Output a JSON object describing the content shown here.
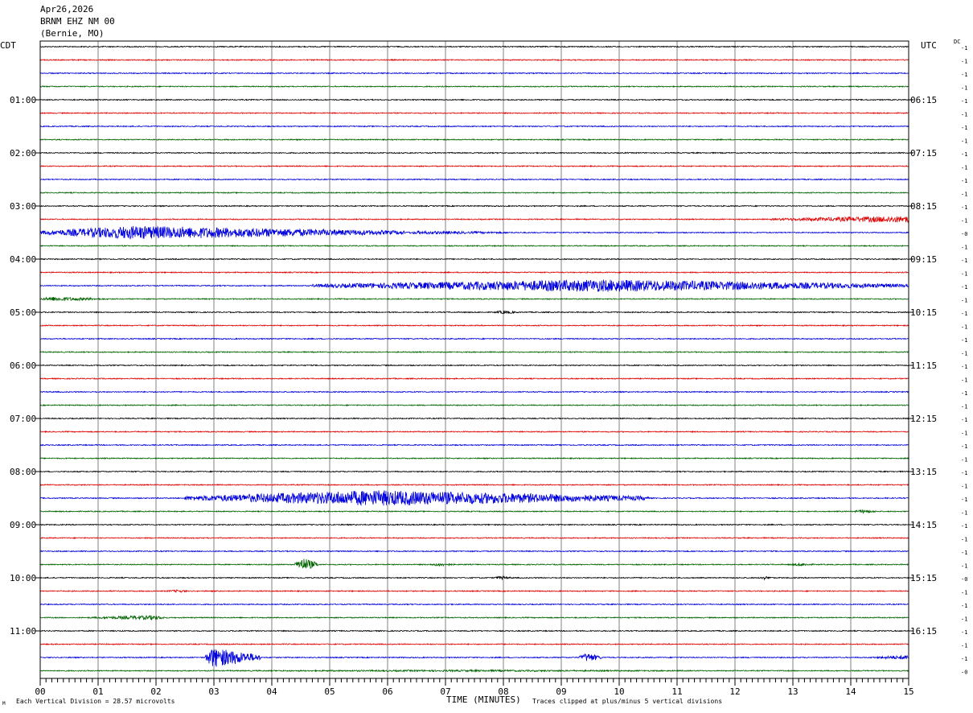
{
  "header": {
    "date": "Apr26,2026",
    "station": "BRNM EHZ NM 00",
    "location": "(Bernie, MO)"
  },
  "left_timezone": "CDT",
  "right_timezone": "UTC",
  "dc_label": "DC",
  "footer": {
    "scale_note": "Each Vertical Division =   28.57 microvolts",
    "clip_note": "Traces clipped at plus/minus 5 vertical divisions",
    "logo_text": "M"
  },
  "colors": {
    "black": "#000000",
    "red": "#e00000",
    "blue": "#0000e0",
    "green": "#006400",
    "grid": "#808080"
  },
  "chart_data": {
    "type": "line",
    "title": "",
    "xlabel": "TIME (MINUTES)",
    "xlim": [
      0,
      15
    ],
    "x_ticks": [
      "00",
      "01",
      "02",
      "03",
      "04",
      "05",
      "06",
      "07",
      "08",
      "09",
      "10",
      "11",
      "12",
      "13",
      "14",
      "15"
    ],
    "rows_per_hour": 4,
    "row_count": 48,
    "left_hour_labels": [
      "01:00",
      "02:00",
      "03:00",
      "04:00",
      "05:00",
      "06:00",
      "07:00",
      "08:00",
      "09:00",
      "10:00",
      "11:00"
    ],
    "right_hour_labels": [
      "06:15",
      "07:15",
      "08:15",
      "09:15",
      "10:15",
      "11:15",
      "12:15",
      "13:15",
      "14:15",
      "15:15",
      "16:15"
    ],
    "trace_colors": [
      "black",
      "red",
      "blue",
      "green"
    ],
    "dc_offsets": [
      "-1",
      "-1",
      "-1",
      "-1",
      "-1",
      "-1",
      "-1",
      "-1",
      "-1",
      "-1",
      "-1",
      "-1",
      "-1",
      "-1",
      "-0",
      "-1",
      "-1",
      "-1",
      "-1",
      "-1",
      "-1",
      "-1",
      "-1",
      "-1",
      "-1",
      "-1",
      "-1",
      "-1",
      "-1",
      "-1",
      "-1",
      "-1",
      "-1",
      "-1",
      "-1",
      "-1",
      "-1",
      "-1",
      "-1",
      "-1",
      "-0",
      "-1",
      "-1",
      "-1",
      "-1",
      "-1",
      "-1",
      "-0"
    ],
    "noise_divisions": 0.45,
    "events": [
      {
        "row": 13,
        "start_min": 12.6,
        "end_min": 15.0,
        "peak_min": 15.0,
        "amp_divisions": 3.0
      },
      {
        "row": 14,
        "start_min": 0.0,
        "end_min": 6.3,
        "peak_min": 1.6,
        "amp_divisions": 6.0
      },
      {
        "row": 14,
        "start_min": 6.3,
        "end_min": 8.5,
        "peak_min": 6.5,
        "amp_divisions": 1.5
      },
      {
        "row": 18,
        "start_min": 4.7,
        "end_min": 15.0,
        "peak_min": 9.7,
        "amp_divisions": 5.5
      },
      {
        "row": 19,
        "start_min": 0.0,
        "end_min": 1.2,
        "peak_min": 0.2,
        "amp_divisions": 2.0
      },
      {
        "row": 20,
        "start_min": 7.8,
        "end_min": 8.3,
        "peak_min": 8.0,
        "amp_divisions": 1.5
      },
      {
        "row": 34,
        "start_min": 2.5,
        "end_min": 10.5,
        "peak_min": 5.8,
        "amp_divisions": 7.0
      },
      {
        "row": 35,
        "start_min": 14.0,
        "end_min": 14.5,
        "peak_min": 14.2,
        "amp_divisions": 1.5
      },
      {
        "row": 39,
        "start_min": 4.4,
        "end_min": 4.8,
        "peak_min": 4.53,
        "amp_divisions": 6.0
      },
      {
        "row": 39,
        "start_min": 6.7,
        "end_min": 7.2,
        "peak_min": 6.9,
        "amp_divisions": 1.5
      },
      {
        "row": 39,
        "start_min": 12.9,
        "end_min": 13.4,
        "peak_min": 13.1,
        "amp_divisions": 1.5
      },
      {
        "row": 40,
        "start_min": 7.8,
        "end_min": 8.2,
        "peak_min": 7.95,
        "amp_divisions": 1.5
      },
      {
        "row": 40,
        "start_min": 12.4,
        "end_min": 12.7,
        "peak_min": 12.5,
        "amp_divisions": 1.5
      },
      {
        "row": 41,
        "start_min": 2.1,
        "end_min": 2.6,
        "peak_min": 2.4,
        "amp_divisions": 1.2
      },
      {
        "row": 43,
        "start_min": 0.8,
        "end_min": 2.2,
        "peak_min": 1.95,
        "amp_divisions": 2.0
      },
      {
        "row": 46,
        "start_min": 2.85,
        "end_min": 3.8,
        "peak_min": 2.98,
        "amp_divisions": 9.0
      },
      {
        "row": 46,
        "start_min": 9.3,
        "end_min": 9.7,
        "peak_min": 9.45,
        "amp_divisions": 4.0
      },
      {
        "row": 46,
        "start_min": 14.3,
        "end_min": 15.0,
        "peak_min": 15.0,
        "amp_divisions": 2.0
      },
      {
        "row": 47,
        "start_min": 0.0,
        "end_min": 15.0,
        "peak_min": 7.5,
        "amp_divisions": 0.8
      }
    ]
  }
}
